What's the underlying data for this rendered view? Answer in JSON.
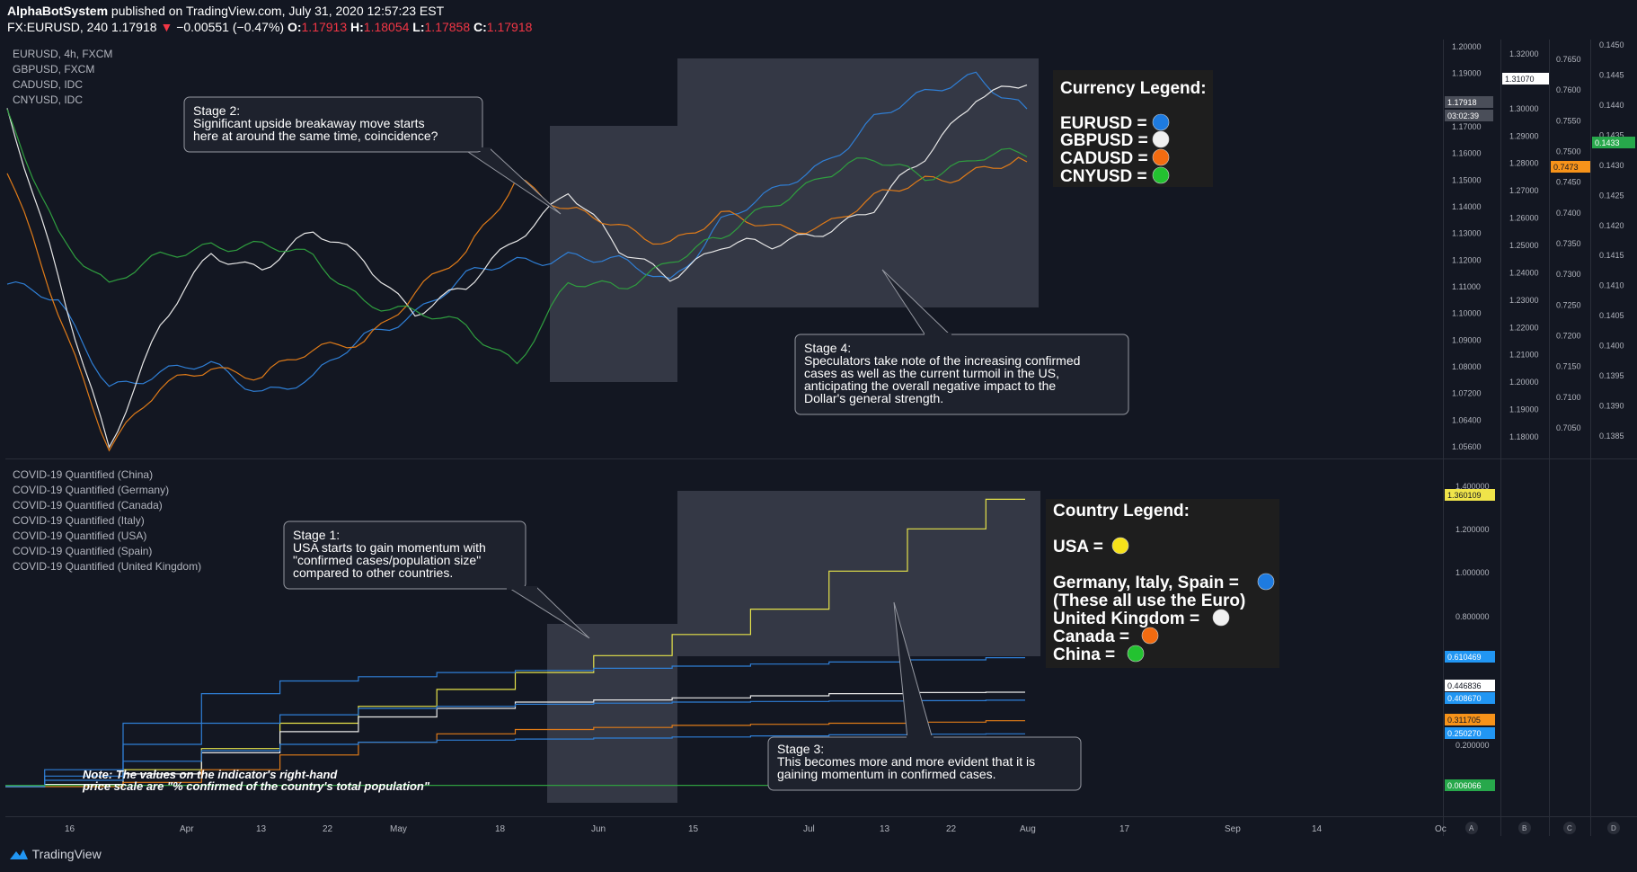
{
  "header": {
    "author": "AlphaBotSystem",
    "published": "published on TradingView.com, July 31, 2020 12:57:23 EST",
    "symbol": "FX:EURUSD, 240",
    "price": "1.17918",
    "change": "−0.00551 (−0.47%)",
    "o_label": "O:",
    "o_value": "1.17913",
    "h_label": "H:",
    "h_value": "1.18054",
    "l_label": "L:",
    "l_value": "1.17858",
    "c_label": "C:",
    "c_value": "1.17918"
  },
  "footer": {
    "brand": "TradingView"
  },
  "colors": {
    "background": "#131722",
    "eur": "#2f7fd6",
    "gbp": "#e8e8e8",
    "cad": "#e07b18",
    "cny": "#2f9e3f",
    "usa": "#e6e34a",
    "red": "#f23645"
  },
  "chart_data": [
    {
      "type": "line",
      "title": "Price panel",
      "legend": [
        "EURUSD, 4h, FXCM",
        "GBPUSD, FXCM",
        "CADUSD, IDC",
        "CNYUSD, IDC"
      ],
      "x_ticks": [
        "16",
        "Apr",
        "13",
        "22",
        "May",
        "18",
        "Jun",
        "15",
        "Jul",
        "13",
        "22",
        "Aug",
        "17",
        "Sep",
        "14",
        "Oc"
      ],
      "scale_eur_ticks": [
        "1.20000",
        "1.19000",
        "1.18000",
        "1.17000",
        "1.16000",
        "1.15000",
        "1.14000",
        "1.13000",
        "1.12000",
        "1.11000",
        "1.10000",
        "1.09000",
        "1.08000",
        "1.07200",
        "1.06400",
        "1.05600"
      ],
      "scale_gbp_ticks": [
        "1.32000",
        "1.31000",
        "1.30000",
        "1.29000",
        "1.28000",
        "1.27000",
        "1.26000",
        "1.25000",
        "1.24000",
        "1.23000",
        "1.22000",
        "1.21000",
        "1.20000",
        "1.19000",
        "1.18000"
      ],
      "scale_cad_ticks": [
        "0.7650",
        "0.7600",
        "0.7550",
        "0.7500",
        "0.7450",
        "0.7400",
        "0.7350",
        "0.7300",
        "0.7250",
        "0.7200",
        "0.7150",
        "0.7100",
        "0.7050"
      ],
      "scale_cny_ticks": [
        "0.1450",
        "0.1445",
        "0.1440",
        "0.1435",
        "0.1430",
        "0.1425",
        "0.1420",
        "0.1415",
        "0.1410",
        "0.1405",
        "0.1400",
        "0.1395",
        "0.1390",
        "0.1385"
      ],
      "price_tags": {
        "eur_price": "1.17918",
        "eur_timer": "03:02:39",
        "gbp_price": "1.31070",
        "cad_price": "0.7473",
        "cny_price": "0.1433"
      },
      "series": [
        {
          "name": "EURUSD",
          "color": "#2f7fd6",
          "values": [
            1.117,
            1.11,
            1.082,
            1.085,
            1.088,
            1.08,
            1.083,
            1.098,
            1.108,
            1.119,
            1.125,
            1.128,
            1.124,
            1.118,
            1.14,
            1.148,
            1.16,
            1.176,
            1.183,
            1.192,
            1.179
          ]
        },
        {
          "name": "GBPUSD",
          "color": "#e8e8e8",
          "values": [
            1.3,
            1.235,
            1.17,
            1.215,
            1.245,
            1.24,
            1.252,
            1.243,
            1.222,
            1.23,
            1.252,
            1.27,
            1.245,
            1.237,
            1.248,
            1.247,
            1.255,
            1.262,
            1.282,
            1.308,
            1.311
          ]
        },
        {
          "name": "CADUSD",
          "color": "#e07b18",
          "values": [
            0.745,
            0.72,
            0.695,
            0.705,
            0.71,
            0.708,
            0.712,
            0.715,
            0.723,
            0.73,
            0.745,
            0.738,
            0.735,
            0.733,
            0.737,
            0.735,
            0.736,
            0.74,
            0.744,
            0.746,
            0.7473
          ]
        },
        {
          "name": "CNYUSD",
          "color": "#2f9e3f",
          "values": [
            0.144,
            0.142,
            0.141,
            0.1415,
            0.1418,
            0.1417,
            0.1415,
            0.1408,
            0.1405,
            0.1403,
            0.1397,
            0.141,
            0.141,
            0.1415,
            0.1418,
            0.1425,
            0.143,
            0.1432,
            0.143,
            0.1433,
            0.1433
          ]
        }
      ]
    },
    {
      "type": "line",
      "title": "COVID-19 Quantified panel",
      "legend": [
        "COVID-19 Quantified (China)",
        "COVID-19 Quantified (Germany)",
        "COVID-19 Quantified (Canada)",
        "COVID-19 Quantified (Italy)",
        "COVID-19 Quantified (USA)",
        "COVID-19 Quantified (Spain)",
        "COVID-19 Quantified (United Kingdom)"
      ],
      "scale_ticks": [
        "1.400000",
        "1.200000",
        "1.000000",
        "0.800000",
        "0.200000"
      ],
      "value_tags": {
        "usa": "1.360109",
        "spain": "0.610469",
        "uk": "0.446836",
        "italy": "0.408670",
        "canada": "0.311705",
        "germany": "0.250270",
        "china": "0.006066"
      },
      "series": [
        {
          "name": "USA",
          "color": "#e6e34a",
          "values": [
            0.0,
            0.01,
            0.08,
            0.18,
            0.3,
            0.38,
            0.46,
            0.54,
            0.62,
            0.72,
            0.84,
            1.02,
            1.22,
            1.36
          ]
        },
        {
          "name": "Spain",
          "color": "#2f7fd6",
          "values": [
            0.0,
            0.08,
            0.3,
            0.44,
            0.5,
            0.52,
            0.54,
            0.55,
            0.56,
            0.57,
            0.58,
            0.59,
            0.6,
            0.61
          ]
        },
        {
          "name": "United Kingdom",
          "color": "#e8e8e8",
          "values": [
            0.0,
            0.01,
            0.06,
            0.16,
            0.26,
            0.33,
            0.37,
            0.4,
            0.41,
            0.42,
            0.43,
            0.44,
            0.445,
            0.447
          ]
        },
        {
          "name": "Italy",
          "color": "#2f7fd6",
          "values": [
            0.0,
            0.05,
            0.2,
            0.3,
            0.34,
            0.37,
            0.38,
            0.39,
            0.395,
            0.4,
            0.403,
            0.405,
            0.407,
            0.409
          ]
        },
        {
          "name": "Canada",
          "color": "#e07b18",
          "values": [
            0.0,
            0.0,
            0.02,
            0.08,
            0.15,
            0.21,
            0.25,
            0.27,
            0.28,
            0.29,
            0.295,
            0.3,
            0.305,
            0.312
          ]
        },
        {
          "name": "Germany",
          "color": "#2f7fd6",
          "values": [
            0.0,
            0.03,
            0.12,
            0.17,
            0.2,
            0.21,
            0.22,
            0.225,
            0.23,
            0.235,
            0.24,
            0.245,
            0.248,
            0.25
          ]
        },
        {
          "name": "China",
          "color": "#2f9e3f",
          "values": [
            0.006,
            0.006,
            0.006,
            0.006,
            0.006,
            0.006,
            0.006,
            0.006,
            0.006,
            0.006,
            0.006,
            0.006,
            0.006,
            0.006
          ]
        }
      ]
    }
  ],
  "annotations": {
    "stage1_title": "Stage 1:",
    "stage1_l1": "USA starts to gain momentum with",
    "stage1_l2": "\"confirmed cases/population size\"",
    "stage1_l3": "compared to other countries.",
    "stage2_title": "Stage 2:",
    "stage2_l1": "Significant upside breakaway move starts",
    "stage2_l2": "here at around the same time, coincidence?",
    "stage3_title": "Stage 3:",
    "stage3_l1": "This becomes more and more evident that it is",
    "stage3_l2": "gaining momentum in confirmed cases.",
    "stage4_title": "Stage 4:",
    "stage4_l1": "Speculators take note of the increasing confirmed",
    "stage4_l2": "cases as well as the current turmoil in the US,",
    "stage4_l3": "anticipating the overall negative impact to the",
    "stage4_l4": "Dollar's general strength.",
    "note_l1": "Note: The values on the indicator's right-hand",
    "note_l2": "price scale are \"% confirmed of the country's total population\""
  },
  "currency_legend": {
    "title": "Currency Legend:",
    "items": [
      {
        "label": "EURUSD =",
        "color": "#1e7be0"
      },
      {
        "label": "GBPUSD =",
        "color": "#f0f0f0"
      },
      {
        "label": "CADUSD =",
        "color": "#f26b10"
      },
      {
        "label": "CNYUSD =",
        "color": "#23c230"
      }
    ]
  },
  "country_legend": {
    "title": "Country Legend:",
    "usa": "USA =",
    "euro": "Germany, Italy, Spain =",
    "euro_note": "(These all use the Euro)",
    "uk": "United Kingdom =",
    "canada": "Canada =",
    "china": "China ="
  },
  "scale_letters": [
    "A",
    "B",
    "C",
    "D"
  ]
}
